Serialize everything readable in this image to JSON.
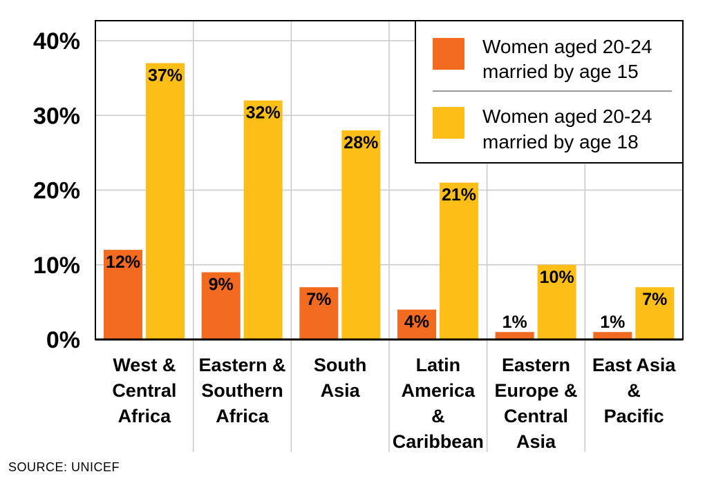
{
  "chart_data": {
    "type": "bar",
    "categories": [
      [
        "West &",
        "Central",
        "Africa"
      ],
      [
        "Eastern &",
        "Southern",
        "Africa"
      ],
      [
        "South",
        "Asia"
      ],
      [
        "Latin",
        "America",
        "&",
        "Caribbean"
      ],
      [
        "Eastern",
        "Europe &",
        "Central",
        "Asia"
      ],
      [
        "East Asia",
        "&",
        "Pacific"
      ]
    ],
    "series": [
      {
        "name": "Women aged 20-24 married by age 15",
        "legend_lines": [
          "Women aged 20-24",
          "married by age 15"
        ],
        "color": "#f26b21",
        "values": [
          12,
          9,
          7,
          4,
          1,
          1
        ],
        "labels": [
          "12%",
          "9%",
          "7%",
          "4%",
          "1%",
          "1%"
        ]
      },
      {
        "name": "Women aged 20-24 married by age 18",
        "legend_lines": [
          "Women aged 20-24",
          "married by age 18"
        ],
        "color": "#fdbf17",
        "values": [
          37,
          32,
          28,
          21,
          10,
          7
        ],
        "labels": [
          "37%",
          "32%",
          "28%",
          "21%",
          "10%",
          "7%"
        ]
      }
    ],
    "yticks": [
      0,
      10,
      20,
      30,
      40
    ],
    "ytick_labels": [
      "0%",
      "10%",
      "20%",
      "30%",
      "40%"
    ],
    "ylim": [
      0,
      40
    ],
    "grid": {
      "vertical": true,
      "horizontal": true
    },
    "legend_position": "top-right",
    "source": "SOURCE: UNICEF"
  }
}
